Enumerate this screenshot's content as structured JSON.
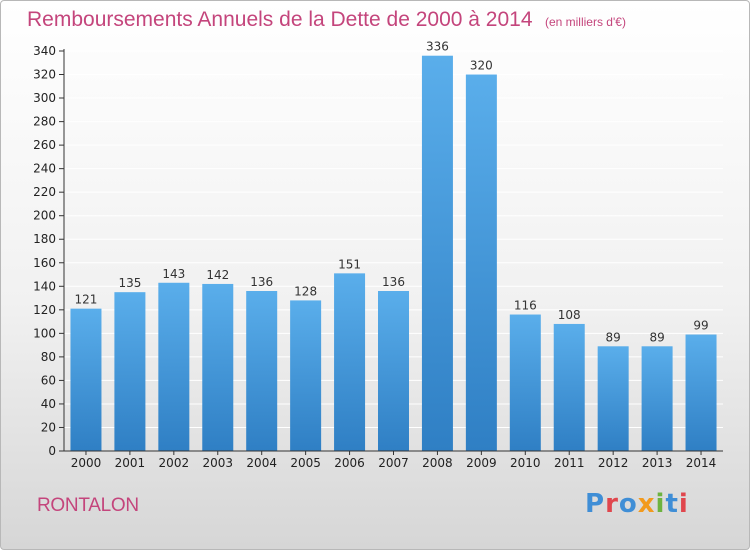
{
  "header": {
    "title": "Remboursements Annuels de la Dette de 2000 à 2014",
    "unit": "(en milliers d'€)"
  },
  "footer": {
    "commune": "RONTALON",
    "brand": "Proxiti"
  },
  "colors": {
    "accent": "#c4457c",
    "bar_top": "#5aaeeb",
    "bar_bottom": "#2f7fc4",
    "axis": "#333333",
    "grid": "#ffffff"
  },
  "chart_data": {
    "type": "bar",
    "title": "Remboursements Annuels de la Dette de 2000 à 2014",
    "subtitle": "(en milliers d'€)",
    "xlabel": "",
    "ylabel": "",
    "categories": [
      "2000",
      "2001",
      "2002",
      "2003",
      "2004",
      "2005",
      "2006",
      "2007",
      "2008",
      "2009",
      "2010",
      "2011",
      "2012",
      "2013",
      "2014"
    ],
    "values": [
      121,
      135,
      143,
      142,
      136,
      128,
      151,
      136,
      336,
      320,
      116,
      108,
      89,
      89,
      99
    ],
    "ylim": [
      0,
      340
    ],
    "ytick_step": 20,
    "grid": true,
    "legend": "none"
  }
}
